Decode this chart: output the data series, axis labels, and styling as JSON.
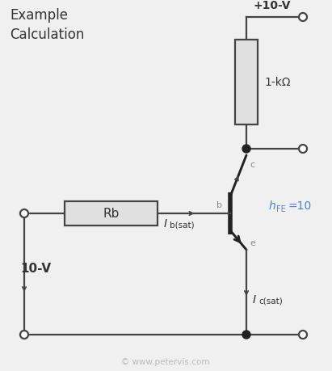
{
  "title": "Example\nCalculation",
  "vcc_label": "+10-V",
  "resistor_label": "1-kΩ",
  "rb_label": "Rb",
  "ib_label": "I",
  "ib_sub": "b(sat)",
  "ic_label": "I",
  "ic_sub": "c(sat)",
  "hfe_label": "h",
  "hfe_sub": "FE",
  "hfe_val": "=10",
  "v10_label": "10-V",
  "b_label": "b",
  "c_label": "c",
  "e_label": "e",
  "watermark": "© www.petervis.com",
  "bg_color": "#f0f0f0",
  "wire_color": "#444444",
  "text_color": "#333333",
  "label_color": "#888888",
  "blue_color": "#4a86c8",
  "transistor_color": "#222222",
  "resistor_fill": "#e0e0e0",
  "node_color": "#222222"
}
